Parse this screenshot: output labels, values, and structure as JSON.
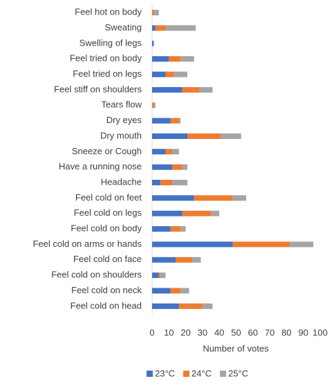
{
  "chart_data": {
    "type": "stacked_barh",
    "x_label": "Number of votes",
    "categories": [
      "Feel hot on body",
      "Sweating",
      "Swelling of legs",
      "Feel tried on body",
      "Feel tried on legs",
      "Feel stiff on shoulders",
      "Tears flow",
      "Dry eyes",
      "Dry mouth",
      "Sneeze or Cough",
      "Have a running nose",
      "Headache",
      "Feel cold on feet",
      "Feel cold on legs",
      "Feel cold on body",
      "Feel cold on arms or hands",
      "Feel cold on face",
      "Feel cold on shoulders",
      "Feel cold on neck",
      "Feel cold on head"
    ],
    "series": [
      {
        "name": "23°C",
        "color": "#4472c4",
        "values": [
          0,
          2,
          1,
          10,
          8,
          18,
          0,
          11,
          21,
          8,
          12,
          5,
          25,
          18,
          11,
          48,
          14,
          4,
          11,
          16
        ]
      },
      {
        "name": "24°C",
        "color": "#ed7d31",
        "values": [
          1,
          6,
          0,
          7,
          5,
          10,
          1,
          5,
          20,
          4,
          6,
          7,
          23,
          17,
          6,
          34,
          10,
          1,
          6,
          14
        ]
      },
      {
        "name": "25°C",
        "color": "#a5a5a5",
        "values": [
          3,
          18,
          0,
          8,
          8,
          8,
          1,
          1,
          12,
          4,
          3,
          9,
          8,
          5,
          3,
          14,
          5,
          3,
          5,
          6
        ]
      }
    ],
    "xlim": [
      0,
      100
    ],
    "xticks": [
      0,
      10,
      20,
      30,
      40,
      50,
      60,
      70,
      80,
      90,
      100
    ],
    "grid": false,
    "legend": "bottom"
  }
}
